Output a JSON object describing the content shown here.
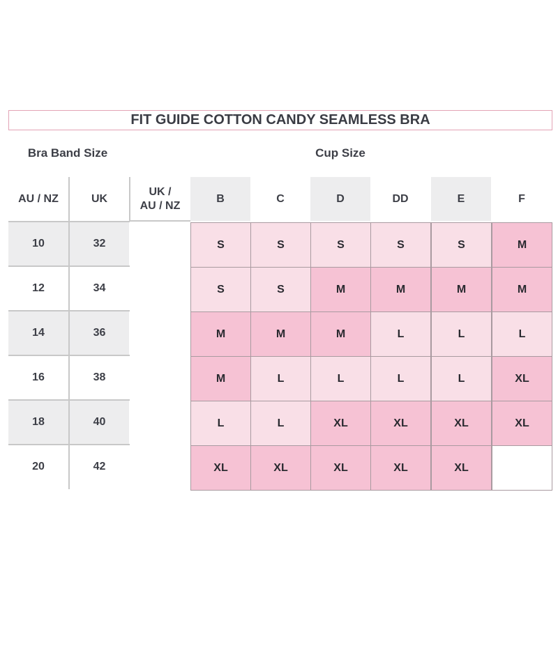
{
  "title": "FIT GUIDE COTTON CANDY SEAMLESS BRA",
  "band_label": "Bra Band Size",
  "cup_label": "Cup Size",
  "headers": {
    "au_nz": "AU / NZ",
    "uk": "UK",
    "uk_au_nz_line1": "UK /",
    "uk_au_nz_line2": "AU / NZ"
  },
  "cups": [
    "B",
    "C",
    "D",
    "DD",
    "E",
    "F"
  ],
  "rows": [
    {
      "au_nz": "10",
      "uk": "32",
      "sizes": [
        "S",
        "S",
        "S",
        "S",
        "S",
        "M"
      ]
    },
    {
      "au_nz": "12",
      "uk": "34",
      "sizes": [
        "S",
        "S",
        "M",
        "M",
        "M",
        "M"
      ]
    },
    {
      "au_nz": "14",
      "uk": "36",
      "sizes": [
        "M",
        "M",
        "M",
        "L",
        "L",
        "L"
      ]
    },
    {
      "au_nz": "16",
      "uk": "38",
      "sizes": [
        "M",
        "L",
        "L",
        "L",
        "L",
        "XL"
      ]
    },
    {
      "au_nz": "18",
      "uk": "40",
      "sizes": [
        "L",
        "L",
        "XL",
        "XL",
        "XL",
        "XL"
      ]
    },
    {
      "au_nz": "20",
      "uk": "42",
      "sizes": [
        "XL",
        "XL",
        "XL",
        "XL",
        "XL",
        ""
      ]
    }
  ],
  "colors": {
    "light_pink": "#f9dfe7",
    "dark_pink": "#f6c2d4",
    "header_gray": "#ededee",
    "title_border": "#e3a3b5"
  }
}
